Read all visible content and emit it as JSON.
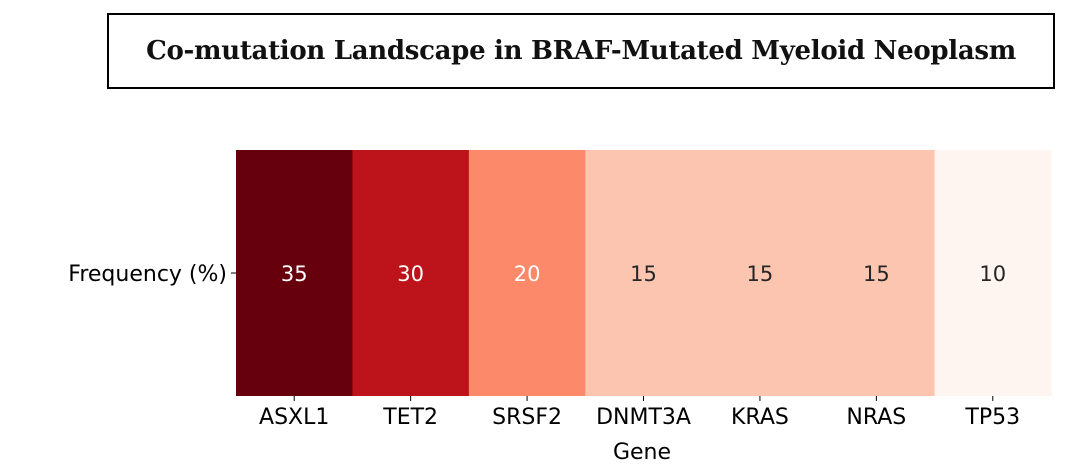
{
  "chart_data": {
    "type": "heatmap",
    "title": "Co-mutation Landscape in BRAF-Mutated Myeloid Neoplasm",
    "xlabel": "Gene",
    "ylabel": "",
    "row_labels": [
      "Frequency (%)"
    ],
    "categories": [
      "ASXL1",
      "TET2",
      "SRSF2",
      "DNMT3A",
      "KRAS",
      "NRAS",
      "TP53"
    ],
    "values": [
      35,
      30,
      20,
      15,
      15,
      15,
      10
    ],
    "colormap": "Reds",
    "colors": [
      "#67000d",
      "#bc141a",
      "#fc8a6a",
      "#fcc5b0",
      "#fcc5b0",
      "#fcc5b0",
      "#fff5f0"
    ],
    "label_colors": [
      "#ffffff",
      "#ffffff",
      "#ffffff",
      "#262626",
      "#262626",
      "#262626",
      "#262626"
    ]
  }
}
